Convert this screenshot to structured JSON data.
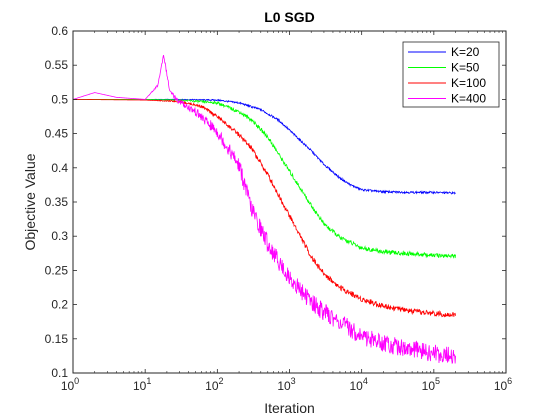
{
  "chart_data": {
    "type": "line",
    "title": "L0 SGD",
    "xlabel": "Iteration",
    "ylabel": "Objective Value",
    "xscale": "log",
    "xlim": [
      1,
      1000000
    ],
    "ylim": [
      0.1,
      0.6
    ],
    "grid": false,
    "legend_position": "top-right",
    "x_ticks": [
      {
        "value": 1,
        "base": "10",
        "exp": "0"
      },
      {
        "value": 10,
        "base": "10",
        "exp": "1"
      },
      {
        "value": 100,
        "base": "10",
        "exp": "2"
      },
      {
        "value": 1000,
        "base": "10",
        "exp": "3"
      },
      {
        "value": 10000,
        "base": "10",
        "exp": "4"
      },
      {
        "value": 100000,
        "base": "10",
        "exp": "5"
      },
      {
        "value": 1000000,
        "base": "10",
        "exp": "6"
      }
    ],
    "y_ticks": [
      {
        "value": 0.1,
        "label": "0.1"
      },
      {
        "value": 0.15,
        "label": "0.15"
      },
      {
        "value": 0.2,
        "label": "0.2"
      },
      {
        "value": 0.25,
        "label": "0.25"
      },
      {
        "value": 0.3,
        "label": "0.3"
      },
      {
        "value": 0.35,
        "label": "0.35"
      },
      {
        "value": 0.4,
        "label": "0.4"
      },
      {
        "value": 0.45,
        "label": "0.45"
      },
      {
        "value": 0.5,
        "label": "0.5"
      },
      {
        "value": 0.55,
        "label": "0.55"
      },
      {
        "value": 0.6,
        "label": "0.6"
      }
    ],
    "series": [
      {
        "name": "K=20",
        "color": "#0000ff",
        "x": [
          1,
          10,
          30,
          100,
          200,
          400,
          700,
          1000,
          2000,
          3000,
          5000,
          7000,
          10000,
          15000,
          20000,
          50000,
          100000,
          200000
        ],
        "y": [
          0.5,
          0.5,
          0.5,
          0.499,
          0.495,
          0.485,
          0.47,
          0.455,
          0.425,
          0.405,
          0.385,
          0.375,
          0.368,
          0.366,
          0.365,
          0.364,
          0.364,
          0.363
        ]
      },
      {
        "name": "K=50",
        "color": "#00ff00",
        "x": [
          1,
          10,
          30,
          100,
          200,
          300,
          500,
          1000,
          2000,
          3000,
          5000,
          10000,
          20000,
          50000,
          100000,
          200000
        ],
        "y": [
          0.5,
          0.5,
          0.499,
          0.495,
          0.482,
          0.47,
          0.445,
          0.395,
          0.345,
          0.318,
          0.298,
          0.283,
          0.277,
          0.274,
          0.272,
          0.271
        ]
      },
      {
        "name": "K=100",
        "color": "#ff0000",
        "x": [
          1,
          10,
          30,
          60,
          100,
          200,
          300,
          500,
          1000,
          2000,
          3000,
          5000,
          10000,
          20000,
          50000,
          100000,
          200000
        ],
        "y": [
          0.5,
          0.499,
          0.497,
          0.49,
          0.475,
          0.448,
          0.428,
          0.39,
          0.33,
          0.27,
          0.245,
          0.225,
          0.208,
          0.198,
          0.19,
          0.187,
          0.185
        ]
      },
      {
        "name": "K=400",
        "color": "#ff00ff",
        "x": [
          1,
          2,
          4,
          10,
          15,
          18,
          22,
          30,
          50,
          100,
          200,
          300,
          500,
          700,
          1000,
          2000,
          3000,
          5000,
          10000,
          20000,
          50000,
          100000,
          200000
        ],
        "y": [
          0.5,
          0.51,
          0.503,
          0.5,
          0.52,
          0.565,
          0.51,
          0.495,
          0.48,
          0.45,
          0.4,
          0.335,
          0.285,
          0.26,
          0.235,
          0.2,
          0.185,
          0.17,
          0.15,
          0.14,
          0.13,
          0.125,
          0.12
        ]
      }
    ]
  }
}
